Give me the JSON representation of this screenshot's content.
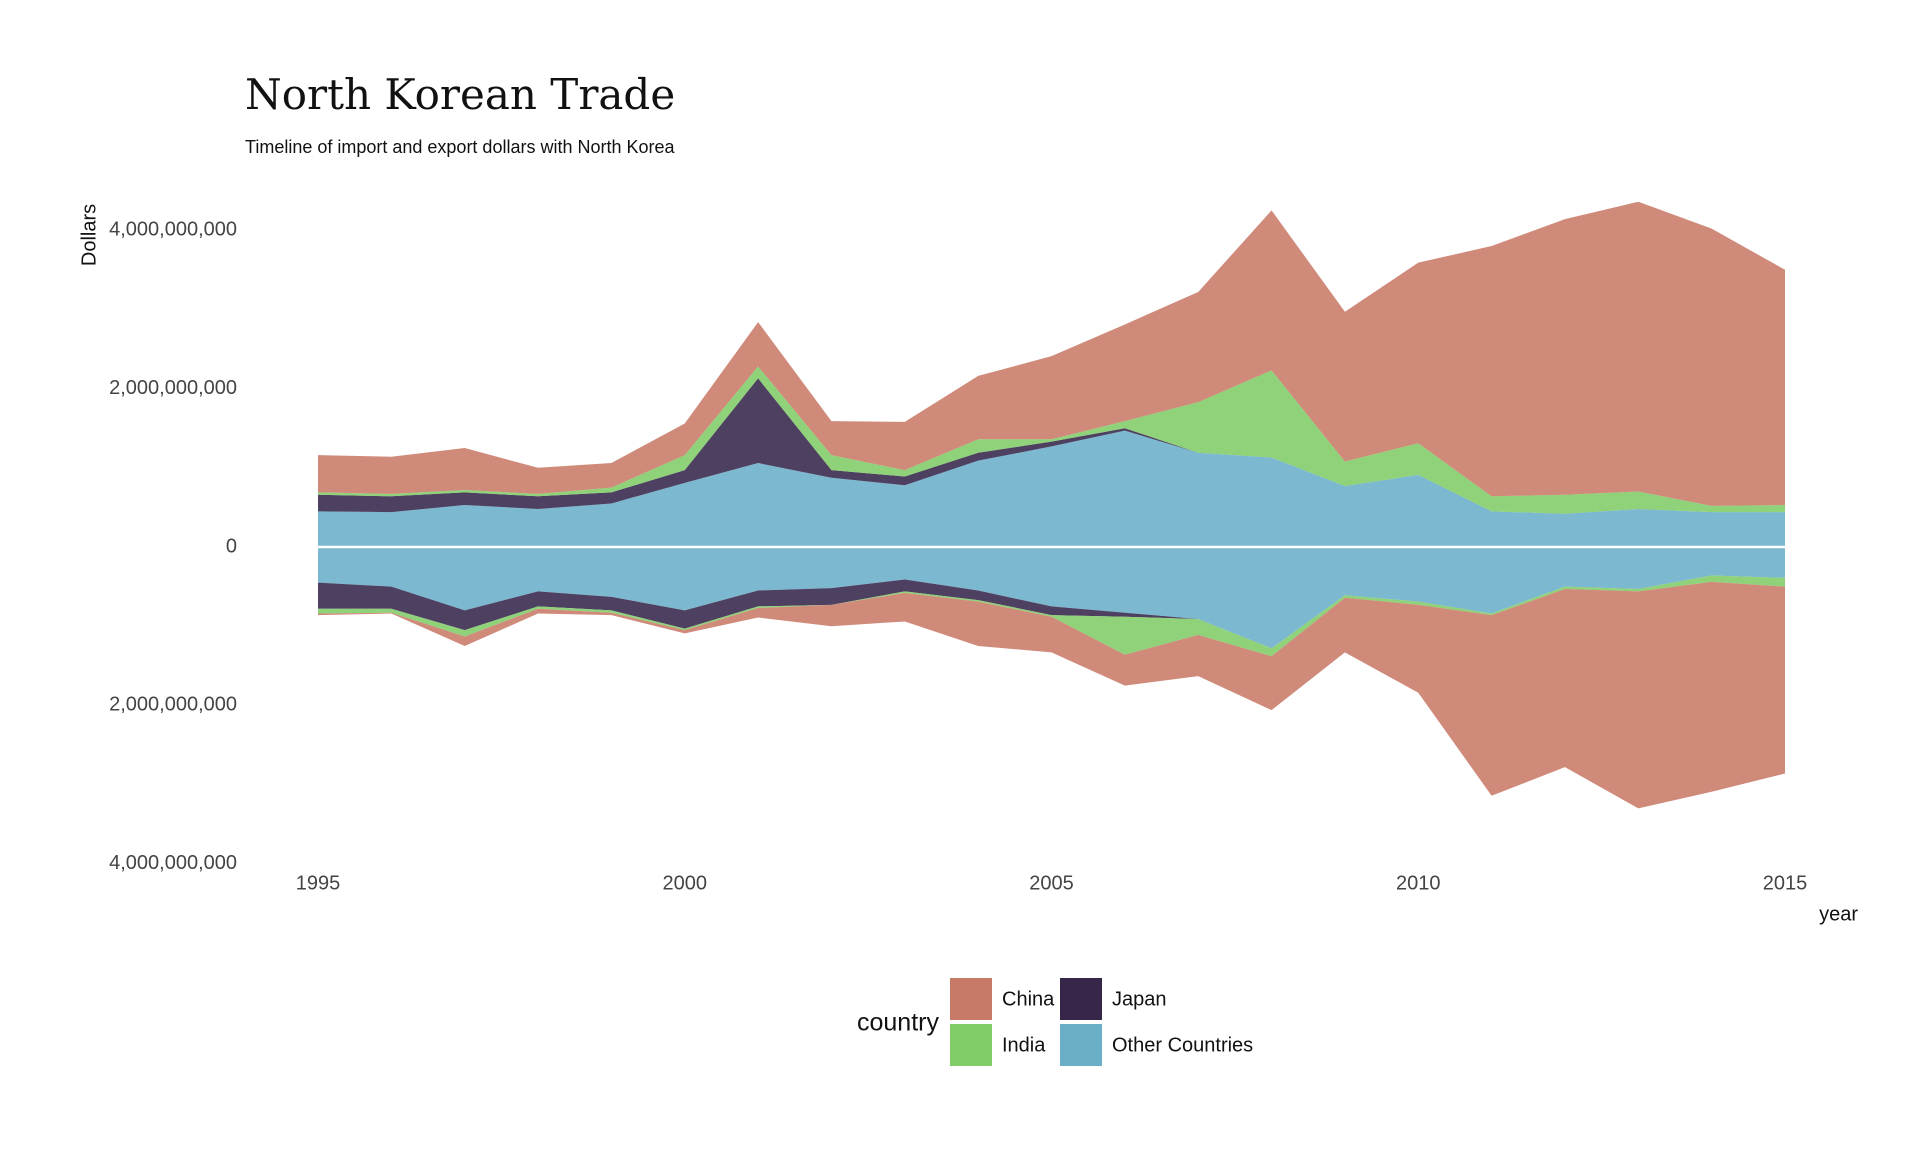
{
  "chart_data": {
    "type": "stream-area",
    "title": "North Korean Trade",
    "subtitle": "Timeline of import and export dollars with North Korea",
    "ylabel": "Dollars",
    "xlabel": "year",
    "legend_title": "country",
    "x": [
      1995,
      1996,
      1997,
      1998,
      1999,
      2000,
      2001,
      2002,
      2003,
      2004,
      2005,
      2006,
      2007,
      2008,
      2009,
      2010,
      2011,
      2012,
      2013,
      2014,
      2015
    ],
    "xlim": [
      1995,
      2015
    ],
    "xticks": [
      1995,
      2000,
      2005,
      2010,
      2015
    ],
    "ylim": [
      -4500000000,
      4500000000
    ],
    "yticks": [
      {
        "value": 4000000000,
        "label": "4,000,000,000"
      },
      {
        "value": 2000000000,
        "label": "2,000,000,000"
      },
      0,
      {
        "value": -2000000000,
        "label": "2,000,000,000"
      },
      {
        "value": -4000000000,
        "label": "4,000,000,000"
      }
    ],
    "series": [
      {
        "name": "Other Countries",
        "color": "#6aaec8",
        "values": [
          450000000,
          440000000,
          530000000,
          480000000,
          550000000,
          810000000,
          1060000000,
          875000000,
          780000000,
          1090000000,
          1270000000,
          1470000000,
          1190000000,
          1130000000,
          770000000,
          910000000,
          450000000,
          420000000,
          480000000,
          440000000,
          440000000
        ],
        "exports": [
          -450000000,
          -500000000,
          -800000000,
          -560000000,
          -630000000,
          -800000000,
          -550000000,
          -520000000,
          -410000000,
          -550000000,
          -750000000,
          -830000000,
          -910000000,
          -1280000000,
          -610000000,
          -690000000,
          -840000000,
          -500000000,
          -530000000,
          -360000000,
          -390000000
        ]
      },
      {
        "name": "Japan",
        "color": "#35264a",
        "values": [
          210000000,
          200000000,
          160000000,
          160000000,
          140000000,
          160000000,
          1070000000,
          95000000,
          110000000,
          100000000,
          60000000,
          30000000,
          0,
          0,
          0,
          0,
          0,
          0,
          0,
          0,
          0
        ],
        "exports": [
          -330000000,
          -280000000,
          -250000000,
          -190000000,
          -170000000,
          -230000000,
          -200000000,
          -210000000,
          -150000000,
          -120000000,
          -110000000,
          -50000000,
          0,
          0,
          0,
          0,
          0,
          0,
          0,
          0,
          0
        ]
      },
      {
        "name": "India",
        "color": "#80cc66",
        "values": [
          30000000,
          30000000,
          30000000,
          30000000,
          60000000,
          190000000,
          150000000,
          190000000,
          80000000,
          170000000,
          30000000,
          90000000,
          640000000,
          1100000000,
          310000000,
          400000000,
          190000000,
          240000000,
          220000000,
          80000000,
          90000000
        ],
        "exports": [
          -60000000,
          -50000000,
          -80000000,
          -30000000,
          -30000000,
          -20000000,
          -20000000,
          0,
          -20000000,
          -20000000,
          -20000000,
          -480000000,
          -200000000,
          -100000000,
          -30000000,
          -40000000,
          -20000000,
          -30000000,
          -30000000,
          -80000000,
          -110000000
        ]
      },
      {
        "name": "China",
        "color": "#c87a68",
        "values": [
          470000000,
          470000000,
          530000000,
          330000000,
          310000000,
          400000000,
          560000000,
          430000000,
          610000000,
          800000000,
          1050000000,
          1220000000,
          1390000000,
          2020000000,
          1890000000,
          2280000000,
          3160000000,
          3480000000,
          3660000000,
          3500000000,
          2970000000
        ],
        "exports": [
          -20000000,
          -10000000,
          -120000000,
          -60000000,
          -30000000,
          -40000000,
          -120000000,
          -270000000,
          -360000000,
          -560000000,
          -450000000,
          -390000000,
          -520000000,
          -680000000,
          -690000000,
          -1110000000,
          -2280000000,
          -2250000000,
          -2740000000,
          -2650000000,
          -2360000000
        ]
      }
    ]
  }
}
